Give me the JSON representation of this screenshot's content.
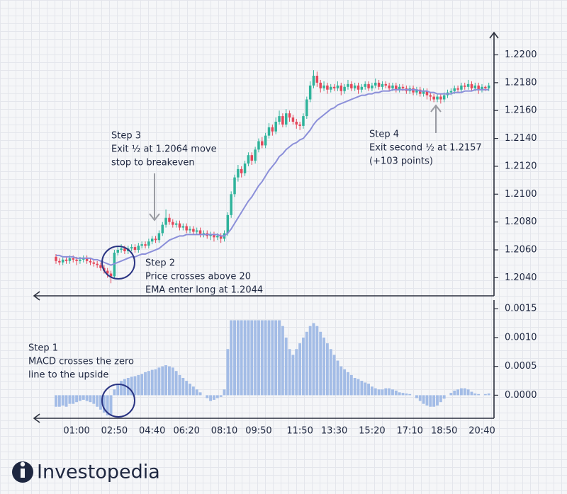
{
  "chart_data": [
    {
      "type": "candlestick",
      "ylim": [
        1.2027,
        1.2216
      ],
      "yticks": [
        {
          "value": 1.204,
          "label": "1.2040"
        },
        {
          "value": 1.206,
          "label": "1.2060"
        },
        {
          "value": 1.208,
          "label": "1.2080"
        },
        {
          "value": 1.21,
          "label": "1.2100"
        },
        {
          "value": 1.212,
          "label": "1.2120"
        },
        {
          "value": 1.214,
          "label": "1.2140"
        },
        {
          "value": 1.216,
          "label": "1.2160"
        },
        {
          "value": 1.218,
          "label": "1.2180"
        },
        {
          "value": 1.22,
          "label": "1.2200"
        }
      ],
      "up_color": "#2fb39b",
      "down_color": "#e4475a",
      "ohlc": [
        [
          1.2055,
          1.2057,
          1.205,
          1.2052
        ],
        [
          1.2052,
          1.2054,
          1.2049,
          1.2051
        ],
        [
          1.2051,
          1.2055,
          1.2049,
          1.2053
        ],
        [
          1.2053,
          1.2055,
          1.205,
          1.2052
        ],
        [
          1.2052,
          1.2056,
          1.205,
          1.2054
        ],
        [
          1.2054,
          1.2056,
          1.2051,
          1.2053
        ],
        [
          1.2053,
          1.2055,
          1.2049,
          1.2052
        ],
        [
          1.2052,
          1.2055,
          1.205,
          1.2053
        ],
        [
          1.2053,
          1.2056,
          1.2051,
          1.2054
        ],
        [
          1.2054,
          1.2056,
          1.205,
          1.2052
        ],
        [
          1.2052,
          1.2054,
          1.2049,
          1.2051
        ],
        [
          1.2051,
          1.2053,
          1.2048,
          1.205
        ],
        [
          1.205,
          1.2052,
          1.2047,
          1.2049
        ],
        [
          1.2049,
          1.2051,
          1.2045,
          1.2047
        ],
        [
          1.2047,
          1.2049,
          1.2043,
          1.2045
        ],
        [
          1.2045,
          1.2047,
          1.204,
          1.2043
        ],
        [
          1.2043,
          1.2045,
          1.2036,
          1.2041
        ],
        [
          1.2041,
          1.206,
          1.2039,
          1.2058
        ],
        [
          1.2058,
          1.2063,
          1.2056,
          1.206
        ],
        [
          1.206,
          1.2064,
          1.2058,
          1.2061
        ],
        [
          1.2061,
          1.2063,
          1.2057,
          1.2059
        ],
        [
          1.2059,
          1.2063,
          1.2057,
          1.2061
        ],
        [
          1.2061,
          1.2064,
          1.2059,
          1.2062
        ],
        [
          1.2062,
          1.2064,
          1.2058,
          1.206
        ],
        [
          1.206,
          1.2065,
          1.2058,
          1.2063
        ],
        [
          1.2063,
          1.2066,
          1.2061,
          1.2064
        ],
        [
          1.2064,
          1.2066,
          1.2061,
          1.2063
        ],
        [
          1.2063,
          1.2068,
          1.2061,
          1.2066
        ],
        [
          1.2066,
          1.207,
          1.2064,
          1.2068
        ],
        [
          1.2068,
          1.207,
          1.2065,
          1.2067
        ],
        [
          1.2067,
          1.2074,
          1.2065,
          1.2072
        ],
        [
          1.2072,
          1.208,
          1.207,
          1.2078
        ],
        [
          1.2078,
          1.2089,
          1.2076,
          1.2083
        ],
        [
          1.2083,
          1.2086,
          1.2078,
          1.208
        ],
        [
          1.208,
          1.2082,
          1.2076,
          1.2078
        ],
        [
          1.2078,
          1.2081,
          1.2076,
          1.2079
        ],
        [
          1.2079,
          1.2081,
          1.2074,
          1.2076
        ],
        [
          1.2076,
          1.2079,
          1.2074,
          1.2077
        ],
        [
          1.2077,
          1.2079,
          1.2072,
          1.2074
        ],
        [
          1.2074,
          1.2077,
          1.2072,
          1.2075
        ],
        [
          1.2075,
          1.2077,
          1.2071,
          1.2073
        ],
        [
          1.2073,
          1.2076,
          1.2071,
          1.2074
        ],
        [
          1.2074,
          1.2076,
          1.2069,
          1.2071
        ],
        [
          1.2071,
          1.2074,
          1.2069,
          1.2072
        ],
        [
          1.2072,
          1.2074,
          1.2068,
          1.207
        ],
        [
          1.207,
          1.2073,
          1.2067,
          1.2071
        ],
        [
          1.2071,
          1.2073,
          1.2066,
          1.2069
        ],
        [
          1.2069,
          1.2072,
          1.2067,
          1.207
        ],
        [
          1.207,
          1.2072,
          1.2065,
          1.2068
        ],
        [
          1.2068,
          1.2074,
          1.2066,
          1.2072
        ],
        [
          1.2072,
          1.2087,
          1.207,
          1.2085
        ],
        [
          1.2085,
          1.2102,
          1.2083,
          1.21
        ],
        [
          1.21,
          1.2114,
          1.2098,
          1.2112
        ],
        [
          1.2112,
          1.2121,
          1.2109,
          1.2118
        ],
        [
          1.2118,
          1.212,
          1.2112,
          1.2115
        ],
        [
          1.2115,
          1.2124,
          1.2113,
          1.2122
        ],
        [
          1.2122,
          1.213,
          1.212,
          1.2128
        ],
        [
          1.2128,
          1.213,
          1.2121,
          1.2124
        ],
        [
          1.2124,
          1.2134,
          1.2122,
          1.2132
        ],
        [
          1.2132,
          1.214,
          1.213,
          1.2138
        ],
        [
          1.2138,
          1.2141,
          1.2133,
          1.2135
        ],
        [
          1.2135,
          1.2144,
          1.2133,
          1.2142
        ],
        [
          1.2142,
          1.2151,
          1.214,
          1.2148
        ],
        [
          1.2148,
          1.215,
          1.2142,
          1.2145
        ],
        [
          1.2145,
          1.2155,
          1.2143,
          1.2152
        ],
        [
          1.2152,
          1.216,
          1.215,
          1.2156
        ],
        [
          1.2156,
          1.2158,
          1.2148,
          1.215
        ],
        [
          1.215,
          1.2161,
          1.2148,
          1.2158
        ],
        [
          1.2158,
          1.216,
          1.2152,
          1.2155
        ],
        [
          1.2155,
          1.2157,
          1.215,
          1.2152
        ],
        [
          1.2152,
          1.2154,
          1.2147,
          1.215
        ],
        [
          1.215,
          1.2152,
          1.2146,
          1.2149
        ],
        [
          1.2149,
          1.2158,
          1.2147,
          1.2156
        ],
        [
          1.2156,
          1.217,
          1.2154,
          1.2168
        ],
        [
          1.2168,
          1.2181,
          1.2166,
          1.2178
        ],
        [
          1.2178,
          1.2189,
          1.2176,
          1.2185
        ],
        [
          1.2185,
          1.2188,
          1.2177,
          1.218
        ],
        [
          1.218,
          1.2182,
          1.2173,
          1.2176
        ],
        [
          1.2176,
          1.2181,
          1.2174,
          1.2178
        ],
        [
          1.2178,
          1.218,
          1.2172,
          1.2175
        ],
        [
          1.2175,
          1.2179,
          1.2173,
          1.2177
        ],
        [
          1.2177,
          1.2179,
          1.2174,
          1.2176
        ],
        [
          1.2176,
          1.2181,
          1.2174,
          1.2178
        ],
        [
          1.2178,
          1.218,
          1.2171,
          1.2174
        ],
        [
          1.2174,
          1.2179,
          1.2172,
          1.2177
        ],
        [
          1.2177,
          1.2182,
          1.2175,
          1.2179
        ],
        [
          1.2179,
          1.2181,
          1.2174,
          1.2176
        ],
        [
          1.2176,
          1.218,
          1.2174,
          1.2178
        ],
        [
          1.2178,
          1.218,
          1.2172,
          1.2175
        ],
        [
          1.2175,
          1.2179,
          1.2173,
          1.2177
        ],
        [
          1.2177,
          1.2181,
          1.2175,
          1.2179
        ],
        [
          1.2179,
          1.2181,
          1.2174,
          1.2176
        ],
        [
          1.2176,
          1.218,
          1.2174,
          1.2178
        ],
        [
          1.2178,
          1.2183,
          1.2176,
          1.218
        ],
        [
          1.218,
          1.2182,
          1.2175,
          1.2177
        ],
        [
          1.2177,
          1.2181,
          1.2175,
          1.2179
        ],
        [
          1.2179,
          1.2181,
          1.2176,
          1.2178
        ],
        [
          1.2178,
          1.218,
          1.2174,
          1.2176
        ],
        [
          1.2176,
          1.218,
          1.2174,
          1.2178
        ],
        [
          1.2178,
          1.218,
          1.2173,
          1.2175
        ],
        [
          1.2175,
          1.2179,
          1.2173,
          1.2177
        ],
        [
          1.2177,
          1.2179,
          1.2174,
          1.2176
        ],
        [
          1.2176,
          1.2178,
          1.2172,
          1.2174
        ],
        [
          1.2174,
          1.2178,
          1.2172,
          1.2176
        ],
        [
          1.2176,
          1.2178,
          1.2171,
          1.2173
        ],
        [
          1.2173,
          1.2177,
          1.2171,
          1.2175
        ],
        [
          1.2175,
          1.2177,
          1.217,
          1.2172
        ],
        [
          1.2172,
          1.2176,
          1.217,
          1.2174
        ],
        [
          1.2174,
          1.2176,
          1.2168,
          1.2171
        ],
        [
          1.2171,
          1.2173,
          1.2167,
          1.217
        ],
        [
          1.217,
          1.2172,
          1.2166,
          1.2168
        ],
        [
          1.2168,
          1.2172,
          1.2166,
          1.217
        ],
        [
          1.217,
          1.2172,
          1.2165,
          1.2168
        ],
        [
          1.2168,
          1.2173,
          1.2166,
          1.2171
        ],
        [
          1.2171,
          1.2175,
          1.2169,
          1.2173
        ],
        [
          1.2173,
          1.2176,
          1.2171,
          1.2174
        ],
        [
          1.2174,
          1.2178,
          1.2172,
          1.2176
        ],
        [
          1.2176,
          1.2178,
          1.2173,
          1.2175
        ],
        [
          1.2175,
          1.218,
          1.2173,
          1.2178
        ],
        [
          1.2178,
          1.218,
          1.2175,
          1.2177
        ],
        [
          1.2177,
          1.2182,
          1.2175,
          1.2179
        ],
        [
          1.2179,
          1.2181,
          1.2174,
          1.2176
        ],
        [
          1.2176,
          1.218,
          1.2174,
          1.2178
        ],
        [
          1.2178,
          1.218,
          1.2172,
          1.2175
        ],
        [
          1.2175,
          1.2179,
          1.2173,
          1.2177
        ],
        [
          1.2177,
          1.2178,
          1.2174,
          1.2176
        ],
        [
          1.2176,
          1.218,
          1.2174,
          1.2178
        ]
      ],
      "ema_color": "#8b8fd9",
      "ema": [
        1.2056,
        1.2056,
        1.2055,
        1.2055,
        1.2055,
        1.2055,
        1.2054,
        1.2054,
        1.2054,
        1.2054,
        1.2054,
        1.2053,
        1.2053,
        1.2052,
        1.2051,
        1.205,
        1.2049,
        1.205,
        1.2051,
        1.2052,
        1.2053,
        1.2054,
        1.2055,
        1.2055,
        1.2056,
        1.2057,
        1.2057,
        1.2058,
        1.2059,
        1.206,
        1.2061,
        1.2063,
        1.2065,
        1.2067,
        1.2068,
        1.2069,
        1.207,
        1.207,
        1.2071,
        1.2071,
        1.2071,
        1.2071,
        1.2071,
        1.2071,
        1.2071,
        1.2071,
        1.2071,
        1.2071,
        1.207,
        1.207,
        1.2072,
        1.2075,
        1.2079,
        1.2083,
        1.2087,
        1.2091,
        1.2095,
        1.2098,
        1.2102,
        1.2106,
        1.2109,
        1.2113,
        1.2117,
        1.212,
        1.2123,
        1.2127,
        1.2129,
        1.2132,
        1.2134,
        1.2136,
        1.2137,
        1.2139,
        1.214,
        1.2143,
        1.2146,
        1.215,
        1.2153,
        1.2155,
        1.2157,
        1.2159,
        1.2161,
        1.2162,
        1.2164,
        1.2165,
        1.2166,
        1.2167,
        1.2168,
        1.2169,
        1.217,
        1.2171,
        1.2171,
        1.2172,
        1.2172,
        1.2173,
        1.2173,
        1.2174,
        1.2174,
        1.2174,
        1.2175,
        1.2175,
        1.2175,
        1.2175,
        1.2175,
        1.2175,
        1.2175,
        1.2175,
        1.2174,
        1.2174,
        1.2174,
        1.2173,
        1.2173,
        1.2172,
        1.2172,
        1.2172,
        1.2172,
        1.2172,
        1.2173,
        1.2173,
        1.2173,
        1.2174,
        1.2174,
        1.2174,
        1.2175,
        1.2175,
        1.2175,
        1.2175,
        1.2175
      ],
      "annotations": [
        {
          "lines": [
            "Step 3",
            "Exit ½ at 1.2064 move",
            "stop to breakeven"
          ]
        },
        {
          "lines": [
            "Step 2",
            "Price crosses above 20",
            "EMA enter long at 1.2044"
          ]
        },
        {
          "lines": [
            "Step 4",
            "Exit second ½ at 1.2157",
            "(+103 points)"
          ]
        }
      ]
    },
    {
      "type": "bar",
      "ylim": [
        -0.0004,
        0.00165
      ],
      "yticks": [
        {
          "value": 0,
          "label": "0.0000"
        },
        {
          "value": 0.0005,
          "label": "0.0005"
        },
        {
          "value": 0.001,
          "label": "0.0010"
        },
        {
          "value": 0.0015,
          "label": "0.0015"
        }
      ],
      "color": "#a3bce6",
      "categories": [
        null,
        null,
        null,
        null,
        null,
        null,
        "01:00",
        null,
        null,
        null,
        null,
        null,
        null,
        null,
        null,
        null,
        null,
        "02:50",
        null,
        null,
        null,
        null,
        null,
        null,
        null,
        null,
        null,
        null,
        "04:40",
        null,
        null,
        null,
        null,
        null,
        null,
        null,
        null,
        null,
        "06:20",
        null,
        null,
        null,
        null,
        null,
        null,
        null,
        null,
        null,
        null,
        "08:10",
        null,
        null,
        null,
        null,
        null,
        null,
        null,
        null,
        null,
        "09:50",
        null,
        null,
        null,
        null,
        null,
        null,
        null,
        null,
        null,
        null,
        null,
        "11:50",
        null,
        null,
        null,
        null,
        null,
        null,
        null,
        null,
        null,
        "13:30",
        null,
        null,
        null,
        null,
        null,
        null,
        null,
        null,
        null,
        null,
        "15:20",
        null,
        null,
        null,
        null,
        null,
        null,
        null,
        null,
        null,
        null,
        "17:10",
        null,
        null,
        null,
        null,
        null,
        null,
        null,
        null,
        null,
        "18:50",
        null,
        null,
        null,
        null,
        null,
        null,
        null,
        null,
        null,
        null,
        "20:40",
        null,
        null
      ],
      "values": [
        -0.0002,
        -0.0002,
        -0.00018,
        -0.0002,
        -0.00015,
        -0.00015,
        -0.00012,
        -0.0001,
        -8e-05,
        -0.0001,
        -0.00012,
        -0.00015,
        -0.0002,
        -0.00025,
        -0.0003,
        -0.00035,
        -0.00035,
        0.0001,
        0.0002,
        0.00025,
        0.00028,
        0.0003,
        0.00032,
        0.00033,
        0.00035,
        0.00037,
        0.0004,
        0.00042,
        0.00044,
        0.00045,
        0.00048,
        0.0005,
        0.00052,
        0.0005,
        0.00048,
        0.00042,
        0.00035,
        0.0003,
        0.00025,
        0.0002,
        0.00015,
        0.0001,
        5e-05,
        0,
        -5e-05,
        -0.0001,
        -8e-05,
        -5e-05,
        -3e-05,
        0.0001,
        0.0008,
        0.0013,
        0.0013,
        0.0013,
        0.0013,
        0.0013,
        0.0013,
        0.0013,
        0.0013,
        0.0013,
        0.0013,
        0.0013,
        0.0013,
        0.0013,
        0.0013,
        0.0013,
        0.0012,
        0.001,
        0.0008,
        0.0007,
        0.0008,
        0.0009,
        0.001,
        0.0011,
        0.0012,
        0.00125,
        0.0012,
        0.0011,
        0.001,
        0.0009,
        0.0008,
        0.0007,
        0.0006,
        0.0005,
        0.00045,
        0.0004,
        0.00035,
        0.0003,
        0.00028,
        0.00025,
        0.00022,
        0.0002,
        0.00015,
        0.00012,
        0.0001,
        0.0001,
        0.00012,
        0.00012,
        0.0001,
        8e-05,
        5e-05,
        4e-05,
        3e-05,
        2e-05,
        0,
        -5e-05,
        -0.0001,
        -0.00015,
        -0.00018,
        -0.0002,
        -0.0002,
        -0.00018,
        -0.00012,
        -6e-05,
        0,
        4e-05,
        8e-05,
        0.0001,
        0.00012,
        0.00012,
        0.0001,
        6e-05,
        3e-05,
        2e-05,
        0,
        2e-05,
        3e-05
      ],
      "annotations": [
        {
          "lines": [
            "Step 1",
            "MACD crosses the zero",
            "line to the upside"
          ]
        }
      ]
    }
  ],
  "brand": "Investopedia"
}
